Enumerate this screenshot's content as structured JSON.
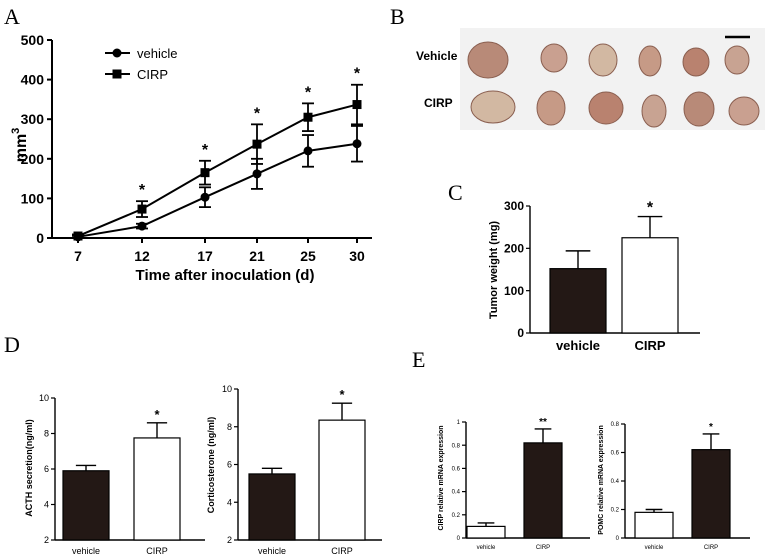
{
  "panel_labels": {
    "a": "A",
    "b": "B",
    "c": "C",
    "d": "D",
    "e": "E"
  },
  "photo": {
    "row_labels": [
      "Vehicle",
      "CIRP"
    ]
  },
  "chart_data": [
    {
      "id": "A",
      "type": "line",
      "title": "",
      "xlabel": "Time after inoculation (d)",
      "ylabel_base": "mm",
      "ylabel_sup": "3",
      "x": [
        7,
        12,
        17,
        21,
        25,
        30
      ],
      "ylim": [
        0,
        500
      ],
      "yticks": [
        0,
        100,
        200,
        300,
        400,
        500
      ],
      "legend": "top-left",
      "series": [
        {
          "name": "vehicle",
          "marker": "circle",
          "values": [
            3,
            30,
            103,
            162,
            220,
            238
          ],
          "errors": [
            3,
            6,
            25,
            38,
            40,
            45
          ]
        },
        {
          "name": "CIRP",
          "marker": "square",
          "values": [
            5,
            73,
            165,
            237,
            305,
            337
          ],
          "errors": [
            4,
            20,
            30,
            50,
            35,
            50
          ]
        }
      ],
      "annotations": [
        "*",
        "*",
        "*",
        "*",
        "*"
      ]
    },
    {
      "id": "C",
      "type": "bar",
      "ylabel": "Tumor weight (mg)",
      "categories": [
        "vehicle",
        "CIRP"
      ],
      "values": [
        152,
        225
      ],
      "errors": [
        42,
        50
      ],
      "fills": [
        "#231815",
        "#ffffff"
      ],
      "ylim": [
        0,
        300
      ],
      "yticks": [
        0,
        100,
        200,
        300
      ],
      "annotations": [
        "",
        "*"
      ]
    },
    {
      "id": "D1",
      "type": "bar",
      "ylabel": "ACTH secretion(ng/ml)",
      "categories": [
        "vehicle",
        "CIRP"
      ],
      "values": [
        5.9,
        7.75
      ],
      "errors": [
        0.3,
        0.85
      ],
      "fills": [
        "#231815",
        "#ffffff"
      ],
      "ylim": [
        2,
        10
      ],
      "yticks": [
        2,
        4,
        6,
        8,
        10
      ],
      "annotations": [
        "",
        "*"
      ]
    },
    {
      "id": "D2",
      "type": "bar",
      "ylabel": "Corticosterone (ng/ml)",
      "categories": [
        "vehicle",
        "CIRP"
      ],
      "values": [
        5.5,
        8.35
      ],
      "errors": [
        0.3,
        0.9
      ],
      "fills": [
        "#231815",
        "#ffffff"
      ],
      "ylim": [
        2,
        10
      ],
      "yticks": [
        2,
        4,
        6,
        8,
        10
      ],
      "annotations": [
        "",
        "*"
      ]
    },
    {
      "id": "E1",
      "type": "bar",
      "ylabel": "CIRP relative mRNA expression",
      "categories": [
        "vehicle",
        "CIRP"
      ],
      "values": [
        0.1,
        0.82
      ],
      "errors": [
        0.03,
        0.12
      ],
      "fills": [
        "#ffffff",
        "#231815"
      ],
      "ylim": [
        0,
        1.0
      ],
      "yticks": [
        0,
        0.2,
        0.4,
        0.6,
        0.8,
        1.0
      ],
      "annotations": [
        "",
        "**"
      ]
    },
    {
      "id": "E2",
      "type": "bar",
      "ylabel": "POMC relative mRNA expression",
      "categories": [
        "vehicle",
        "CIRP"
      ],
      "values": [
        0.18,
        0.62
      ],
      "errors": [
        0.02,
        0.11
      ],
      "fills": [
        "#ffffff",
        "#231815"
      ],
      "ylim": [
        0,
        0.8
      ],
      "yticks": [
        0,
        0.2,
        0.4,
        0.6,
        0.8
      ],
      "annotations": [
        "",
        "*"
      ]
    }
  ]
}
